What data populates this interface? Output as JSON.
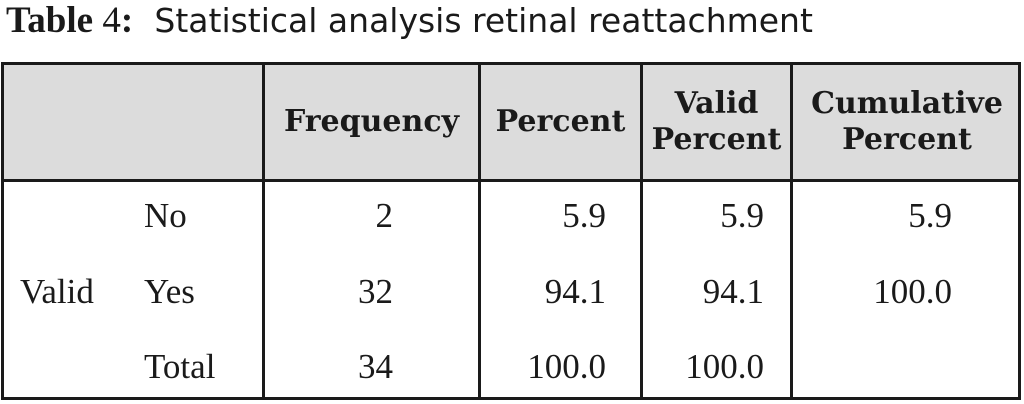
{
  "caption": {
    "label": "Table",
    "number": "4",
    "colon": ":",
    "title": "Statistical analysis retinal reattachment"
  },
  "table": {
    "headers": {
      "frequency": "Frequency",
      "percent": "Percent",
      "valid_percent_1": "Valid",
      "valid_percent_2": "Percent",
      "cumulative_percent_1": "Cumulative",
      "cumulative_percent_2": "Percent"
    },
    "group_label": "Valid",
    "rows": [
      {
        "label": "No",
        "frequency": "2",
        "percent": "5.9",
        "valid_percent": "5.9",
        "cumulative_percent": "5.9"
      },
      {
        "label": "Yes",
        "frequency": "32",
        "percent": "94.1",
        "valid_percent": "94.1",
        "cumulative_percent": "100.0"
      },
      {
        "label": "Total",
        "frequency": "34",
        "percent": "100.0",
        "valid_percent": "100.0",
        "cumulative_percent": ""
      }
    ]
  }
}
